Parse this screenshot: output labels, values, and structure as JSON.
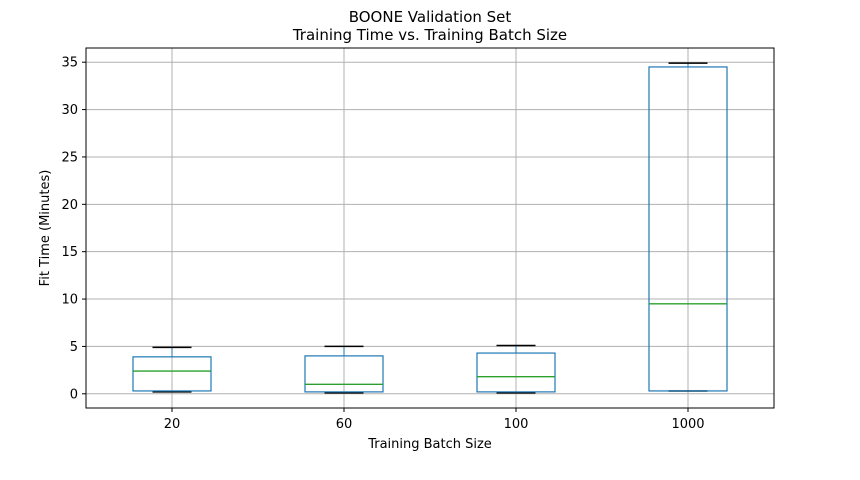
{
  "chart_data": {
    "type": "box",
    "title": "BOONE Validation Set",
    "subtitle": "Training Time vs. Training Batch Size",
    "xlabel": "Training Batch Size",
    "ylabel": "Fit Time (Minutes)",
    "ylim": [
      -1.5,
      36.5
    ],
    "yticks": [
      0,
      5,
      10,
      15,
      20,
      25,
      30,
      35
    ],
    "grid": true,
    "categories": [
      "20",
      "60",
      "100",
      "1000"
    ],
    "boxes": [
      {
        "category": "20",
        "whisker_low": 0.2,
        "q1": 0.3,
        "median": 2.4,
        "q3": 3.9,
        "whisker_high": 4.9
      },
      {
        "category": "60",
        "whisker_low": 0.1,
        "q1": 0.2,
        "median": 1.0,
        "q3": 4.0,
        "whisker_high": 5.0
      },
      {
        "category": "100",
        "whisker_low": 0.1,
        "q1": 0.2,
        "median": 1.8,
        "q3": 4.3,
        "whisker_high": 5.1
      },
      {
        "category": "1000",
        "whisker_low": 0.3,
        "q1": 0.3,
        "median": 9.5,
        "q3": 34.5,
        "whisker_high": 34.9
      }
    ],
    "colors": {
      "box": "#1f77b4",
      "median": "#2ca02c",
      "whisker": "#000000",
      "grid": "#b0b0b0"
    }
  }
}
